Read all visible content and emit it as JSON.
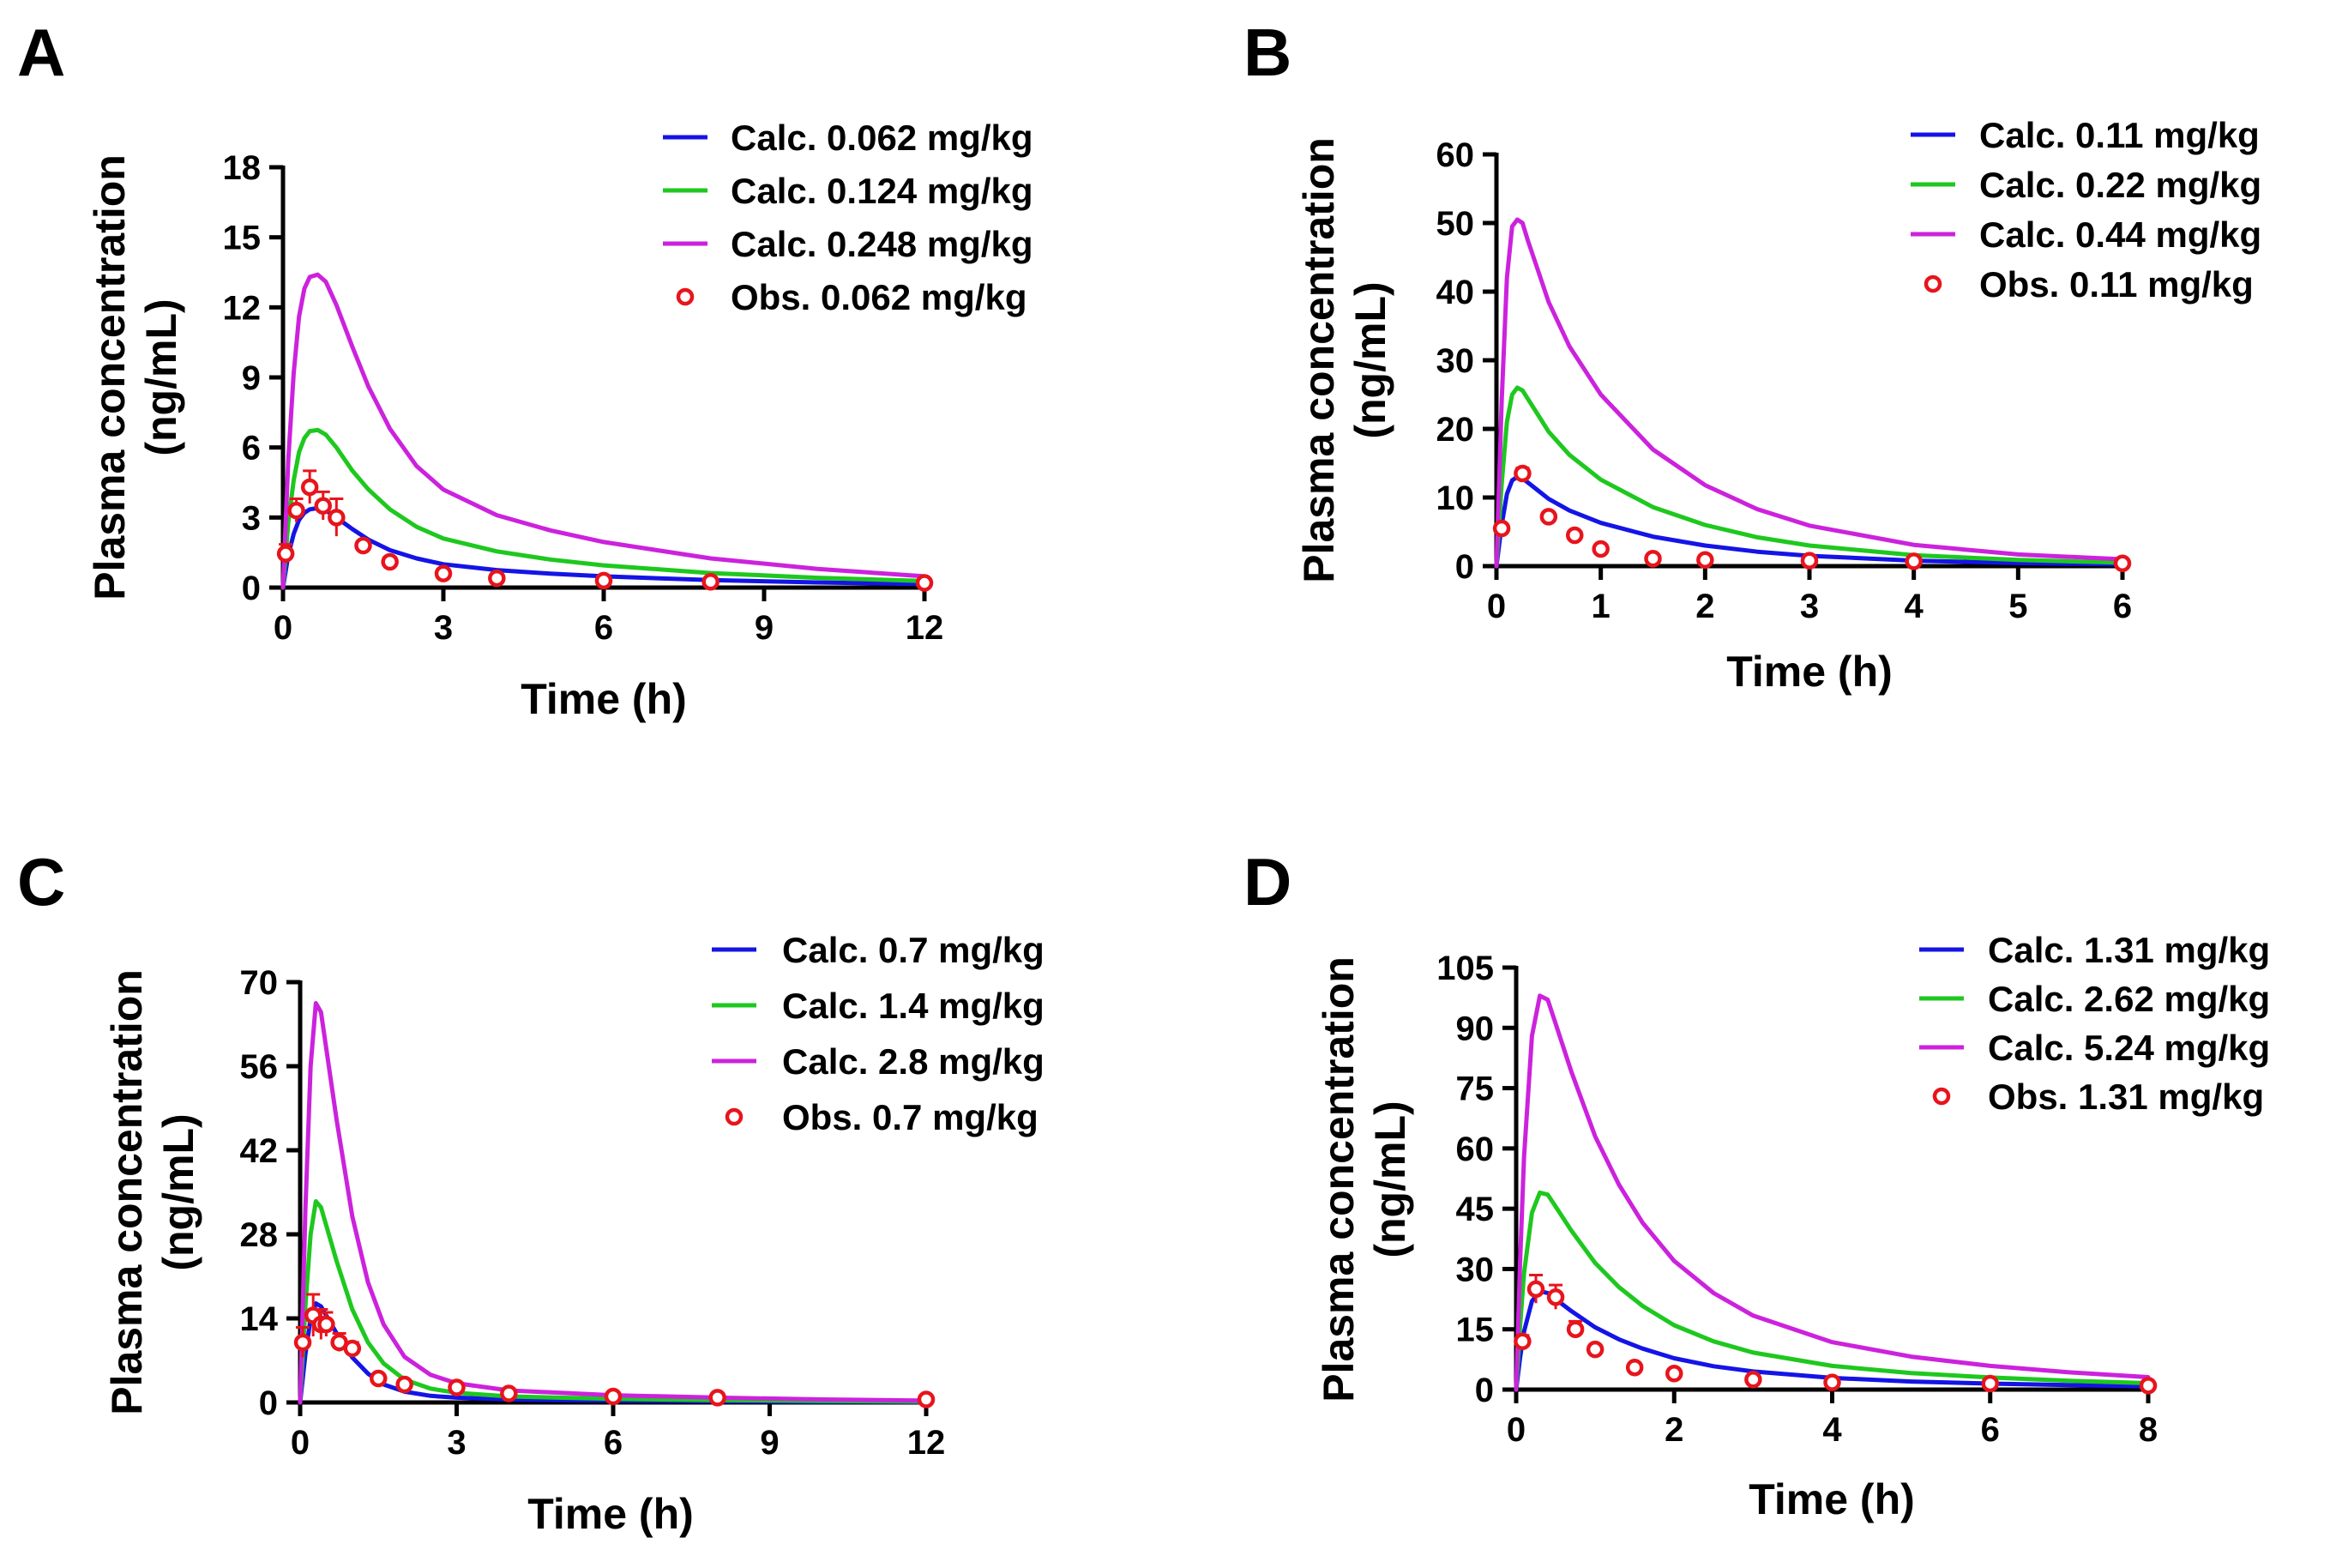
{
  "figure": {
    "panels": [
      "A",
      "B",
      "C",
      "D"
    ]
  },
  "colors": {
    "axis": "#000000",
    "observed": "#e8141c",
    "dose1": "#1414e6",
    "dose2": "#1ec81e",
    "dose4": "#cc22dd"
  },
  "chart_data": [
    {
      "panel": "A",
      "type": "line",
      "xlabel": "Time (h)",
      "ylabel": [
        "Plasma concentration",
        "(ng/mL)"
      ],
      "xlim": [
        0,
        12
      ],
      "ylim": [
        0,
        18
      ],
      "xticks": [
        0,
        3,
        6,
        9,
        12
      ],
      "yticks": [
        0,
        3,
        6,
        9,
        12,
        15,
        18
      ],
      "series": [
        {
          "name": "Calc. 0.062 mg/kg",
          "color": "#1414e6",
          "x": [
            0,
            0.1,
            0.2,
            0.3,
            0.4,
            0.5,
            0.65,
            0.8,
            1.0,
            1.3,
            1.6,
            2,
            2.5,
            3,
            4,
            5,
            6,
            8,
            10,
            12
          ],
          "y": [
            0,
            1.4,
            2.3,
            2.9,
            3.2,
            3.35,
            3.4,
            3.3,
            3.0,
            2.5,
            2.05,
            1.6,
            1.25,
            1.0,
            0.75,
            0.6,
            0.48,
            0.32,
            0.22,
            0.15
          ]
        },
        {
          "name": "Calc. 0.124 mg/kg",
          "color": "#1ec81e",
          "x": [
            0,
            0.1,
            0.2,
            0.3,
            0.4,
            0.5,
            0.65,
            0.8,
            1.0,
            1.3,
            1.6,
            2,
            2.5,
            3,
            4,
            5,
            6,
            8,
            10,
            12
          ],
          "y": [
            0,
            2.8,
            4.6,
            5.8,
            6.4,
            6.7,
            6.75,
            6.55,
            6.0,
            5.0,
            4.2,
            3.35,
            2.6,
            2.1,
            1.55,
            1.2,
            0.95,
            0.62,
            0.42,
            0.28
          ]
        },
        {
          "name": "Calc. 0.248 mg/kg",
          "color": "#cc22dd",
          "x": [
            0,
            0.1,
            0.2,
            0.3,
            0.4,
            0.5,
            0.65,
            0.8,
            1.0,
            1.3,
            1.6,
            2,
            2.5,
            3,
            4,
            5,
            6,
            8,
            10,
            12
          ],
          "y": [
            0,
            5.5,
            9.2,
            11.6,
            12.8,
            13.3,
            13.4,
            13.1,
            12.1,
            10.3,
            8.6,
            6.8,
            5.2,
            4.2,
            3.1,
            2.45,
            1.95,
            1.25,
            0.8,
            0.48
          ]
        },
        {
          "name": "Obs. 0.062 mg/kg",
          "color": "#e8141c",
          "marker": "open-circle",
          "x": [
            0.05,
            0.25,
            0.5,
            0.75,
            1.0,
            1.5,
            2,
            3,
            4,
            6,
            8,
            12
          ],
          "y": [
            1.45,
            3.3,
            4.3,
            3.5,
            3.0,
            1.8,
            1.1,
            0.6,
            0.4,
            0.3,
            0.25,
            0.2
          ],
          "err": [
            0.4,
            0.5,
            0.7,
            0.6,
            0.8,
            0.2,
            0.2,
            0.1,
            0.1,
            0.05,
            0.05,
            0.05
          ]
        }
      ]
    },
    {
      "panel": "B",
      "type": "line",
      "xlabel": "Time (h)",
      "ylabel": [
        "Plasma concentration",
        "(ng/mL)"
      ],
      "xlim": [
        0,
        6
      ],
      "ylim": [
        0,
        60
      ],
      "xticks": [
        0,
        1,
        2,
        3,
        4,
        5,
        6
      ],
      "yticks": [
        0,
        10,
        20,
        30,
        40,
        50,
        60
      ],
      "series": [
        {
          "name": "Calc. 0.11 mg/kg",
          "color": "#1414e6",
          "x": [
            0,
            0.05,
            0.1,
            0.15,
            0.2,
            0.25,
            0.3,
            0.4,
            0.5,
            0.7,
            1.0,
            1.5,
            2,
            2.5,
            3,
            4,
            5,
            6
          ],
          "y": [
            0,
            6.0,
            10.5,
            12.5,
            13.0,
            12.8,
            12.2,
            11.0,
            9.8,
            8.1,
            6.3,
            4.3,
            3.0,
            2.1,
            1.5,
            0.8,
            0.45,
            0.25
          ]
        },
        {
          "name": "Calc. 0.22 mg/kg",
          "color": "#1ec81e",
          "x": [
            0,
            0.05,
            0.1,
            0.15,
            0.2,
            0.25,
            0.3,
            0.4,
            0.5,
            0.7,
            1.0,
            1.5,
            2,
            2.5,
            3,
            4,
            5,
            6
          ],
          "y": [
            0,
            12.0,
            21.0,
            25.0,
            26.0,
            25.6,
            24.4,
            22.0,
            19.6,
            16.2,
            12.6,
            8.6,
            6.0,
            4.2,
            3.0,
            1.6,
            0.9,
            0.5
          ]
        },
        {
          "name": "Calc. 0.44 mg/kg",
          "color": "#cc22dd",
          "x": [
            0,
            0.05,
            0.1,
            0.15,
            0.2,
            0.25,
            0.3,
            0.4,
            0.5,
            0.7,
            1.0,
            1.5,
            2,
            2.5,
            3,
            4,
            5,
            6
          ],
          "y": [
            0,
            24.0,
            42.0,
            49.5,
            50.5,
            50.0,
            47.5,
            43.0,
            38.5,
            32.0,
            25.0,
            17.0,
            11.8,
            8.3,
            5.9,
            3.1,
            1.7,
            1.0
          ]
        },
        {
          "name": "Obs. 0.11 mg/kg",
          "color": "#e8141c",
          "marker": "open-circle",
          "x": [
            0.05,
            0.25,
            0.5,
            0.75,
            1.0,
            1.5,
            2,
            3,
            4,
            6
          ],
          "y": [
            5.5,
            13.5,
            7.2,
            4.5,
            2.5,
            1.1,
            0.9,
            0.8,
            0.7,
            0.4
          ],
          "err": [
            0.5,
            0.8,
            0.5,
            0.3,
            0.3,
            0.1,
            0.1,
            0.1,
            0.1,
            0.05
          ]
        }
      ]
    },
    {
      "panel": "C",
      "type": "line",
      "xlabel": "Time (h)",
      "ylabel": [
        "Plasma concentration",
        "(ng/mL)"
      ],
      "xlim": [
        0,
        12
      ],
      "ylim": [
        0,
        70
      ],
      "xticks": [
        0,
        3,
        6,
        9,
        12
      ],
      "yticks": [
        0,
        14,
        28,
        42,
        56,
        70
      ],
      "series": [
        {
          "name": "Calc. 0.7 mg/kg",
          "color": "#1414e6",
          "x": [
            0,
            0.1,
            0.2,
            0.3,
            0.4,
            0.5,
            0.7,
            1.0,
            1.3,
            1.6,
            2,
            2.5,
            3,
            4,
            6,
            8,
            10,
            12
          ],
          "y": [
            0,
            8.0,
            14.0,
            16.5,
            16.0,
            14.5,
            11.5,
            7.5,
            4.8,
            3.0,
            1.8,
            1.1,
            0.8,
            0.5,
            0.3,
            0.2,
            0.12,
            0.08
          ]
        },
        {
          "name": "Calc. 1.4 mg/kg",
          "color": "#1ec81e",
          "x": [
            0,
            0.1,
            0.2,
            0.3,
            0.4,
            0.5,
            0.7,
            1.0,
            1.3,
            1.6,
            2,
            2.5,
            3,
            4,
            6,
            8,
            10,
            12
          ],
          "y": [
            0,
            16.0,
            28.0,
            33.5,
            32.5,
            29.5,
            23.5,
            15.5,
            10.0,
            6.5,
            3.8,
            2.3,
            1.6,
            1.0,
            0.6,
            0.4,
            0.25,
            0.15
          ]
        },
        {
          "name": "Calc. 2.8 mg/kg",
          "color": "#cc22dd",
          "x": [
            0,
            0.1,
            0.2,
            0.3,
            0.4,
            0.5,
            0.7,
            1.0,
            1.3,
            1.6,
            2,
            2.5,
            3,
            4,
            6,
            8,
            10,
            12
          ],
          "y": [
            0,
            32.0,
            56.0,
            66.5,
            65.0,
            59.0,
            47.0,
            31.0,
            20.0,
            13.0,
            7.6,
            4.6,
            3.2,
            2.0,
            1.2,
            0.8,
            0.5,
            0.3
          ]
        },
        {
          "name": "Obs. 0.7 mg/kg",
          "color": "#e8141c",
          "marker": "open-circle",
          "x": [
            0.05,
            0.25,
            0.4,
            0.5,
            0.75,
            1.0,
            1.5,
            2,
            3,
            4,
            6,
            8,
            12
          ],
          "y": [
            10.0,
            14.5,
            13.0,
            13.0,
            10.0,
            9.0,
            4.0,
            3.0,
            2.5,
            1.5,
            1.0,
            0.8,
            0.5
          ],
          "err": [
            2.5,
            3.5,
            2.5,
            2.0,
            1.5,
            1.0,
            0.5,
            0.4,
            0.3,
            0.2,
            0.2,
            0.1,
            0.1
          ]
        }
      ]
    },
    {
      "panel": "D",
      "type": "line",
      "xlabel": "Time (h)",
      "ylabel": [
        "Plasma concentration",
        "(ng/mL)"
      ],
      "xlim": [
        0,
        8
      ],
      "ylim": [
        0,
        105
      ],
      "xticks": [
        0,
        2,
        4,
        6,
        8
      ],
      "yticks": [
        0,
        15,
        30,
        45,
        60,
        75,
        90,
        105
      ],
      "series": [
        {
          "name": "Calc. 1.31 mg/kg",
          "color": "#1414e6",
          "x": [
            0,
            0.05,
            0.1,
            0.2,
            0.3,
            0.4,
            0.5,
            0.7,
            1.0,
            1.3,
            1.6,
            2,
            2.5,
            3,
            4,
            5,
            6,
            7,
            8
          ],
          "y": [
            0,
            8.0,
            14.5,
            22.0,
            24.5,
            24.0,
            22.5,
            19.5,
            15.5,
            12.5,
            10.2,
            7.8,
            5.8,
            4.5,
            2.9,
            2.0,
            1.5,
            1.1,
            0.8
          ]
        },
        {
          "name": "Calc. 2.62 mg/kg",
          "color": "#1ec81e",
          "x": [
            0,
            0.05,
            0.1,
            0.2,
            0.3,
            0.4,
            0.5,
            0.7,
            1.0,
            1.3,
            1.6,
            2,
            2.5,
            3,
            4,
            5,
            6,
            7,
            8
          ],
          "y": [
            0,
            16.0,
            29.0,
            44.0,
            49.0,
            48.5,
            45.5,
            39.5,
            31.5,
            25.5,
            20.8,
            16.0,
            12.0,
            9.2,
            5.9,
            4.1,
            3.0,
            2.2,
            1.6
          ]
        },
        {
          "name": "Calc. 5.24 mg/kg",
          "color": "#cc22dd",
          "x": [
            0,
            0.05,
            0.1,
            0.2,
            0.3,
            0.4,
            0.5,
            0.7,
            1.0,
            1.3,
            1.6,
            2,
            2.5,
            3,
            4,
            5,
            6,
            7,
            8
          ],
          "y": [
            0,
            32.0,
            58.0,
            88.0,
            98.0,
            97.0,
            91.0,
            79.0,
            63.0,
            51.0,
            41.5,
            32.0,
            24.0,
            18.4,
            11.8,
            8.2,
            5.9,
            4.3,
            3.1
          ]
        },
        {
          "name": "Obs. 1.31 mg/kg",
          "color": "#e8141c",
          "marker": "open-circle",
          "x": [
            0.08,
            0.25,
            0.5,
            0.75,
            1.0,
            1.5,
            2,
            3,
            4,
            6,
            8
          ],
          "y": [
            12.0,
            25.0,
            23.0,
            15.0,
            10.0,
            5.5,
            4.0,
            2.5,
            1.8,
            1.5,
            1.0
          ],
          "err": [
            1.5,
            3.5,
            3.0,
            2.0,
            1.0,
            0.5,
            0.4,
            0.3,
            0.2,
            0.2,
            0.1
          ]
        }
      ]
    }
  ]
}
